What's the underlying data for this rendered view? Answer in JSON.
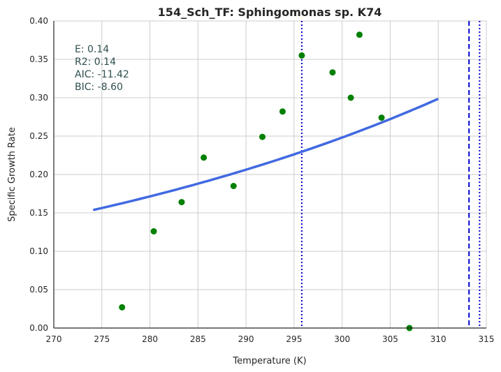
{
  "chart_data": {
    "type": "scatter",
    "title": "154_Sch_TF: Sphingomonas sp. K74",
    "xlabel": "Temperature (K)",
    "ylabel": "Specific Growth Rate",
    "xlim": [
      270,
      315
    ],
    "ylim": [
      0,
      0.4
    ],
    "xticks": [
      270,
      275,
      280,
      285,
      290,
      295,
      300,
      305,
      310,
      315
    ],
    "yticks": [
      0.0,
      0.05,
      0.1,
      0.15,
      0.2,
      0.25,
      0.3,
      0.35,
      0.4
    ],
    "ytick_labels": [
      "0.00",
      "0.05",
      "0.10",
      "0.15",
      "0.20",
      "0.25",
      "0.30",
      "0.35",
      "0.40"
    ],
    "grid": true,
    "points": {
      "color": "#008000",
      "x": [
        277.1,
        280.4,
        283.3,
        285.6,
        288.7,
        291.7,
        293.8,
        295.8,
        299.0,
        300.9,
        301.8,
        304.1,
        307.0
      ],
      "y": [
        0.027,
        0.126,
        0.164,
        0.222,
        0.185,
        0.249,
        0.282,
        0.355,
        0.333,
        0.3,
        0.382,
        0.274,
        0.0
      ]
    },
    "fit_curve": {
      "color": "#4169e1",
      "x_start": 274.2,
      "x_end": 309.9,
      "y_start": 0.154,
      "y_end": 0.298
    },
    "vlines": [
      {
        "x": 295.8,
        "style": "dotted",
        "color": "#0000cd"
      },
      {
        "x": 313.2,
        "style": "dashed",
        "color": "#0000cd"
      },
      {
        "x": 314.3,
        "style": "dotted",
        "color": "#0000cd"
      }
    ],
    "stats": [
      {
        "label": "E:",
        "value": "0.14"
      },
      {
        "label": "R2:",
        "value": "0.14"
      },
      {
        "label": "AIC:",
        "value": "-11.42"
      },
      {
        "label": "BIC:",
        "value": "-8.60"
      }
    ]
  }
}
